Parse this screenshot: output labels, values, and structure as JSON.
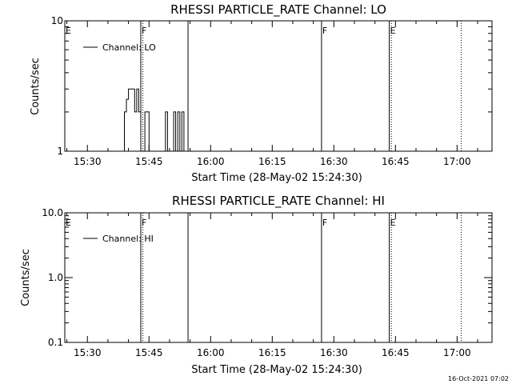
{
  "footer": {
    "timestamp": "16-Oct-2021 07:02"
  },
  "chart_data": [
    {
      "type": "line",
      "title": "RHESSI PARTICLE_RATE Channel: LO",
      "xlabel": "Start Time (28-May-02 15:24:30)",
      "ylabel": "Counts/sec",
      "y_scale": "log",
      "ylim": [
        1,
        10
      ],
      "y_ticks": [
        1,
        10
      ],
      "y_tick_labels": [
        "1",
        "10"
      ],
      "xlim": [
        "15:24:30",
        "17:08:30"
      ],
      "x_ticks": [
        "15:30",
        "15:45",
        "16:00",
        "16:15",
        "16:30",
        "16:45",
        "17:00"
      ],
      "legend": {
        "label": "Channel: LO",
        "placement": "top-left"
      },
      "markers": [
        {
          "time": "15:24:30",
          "label": "E",
          "style": "solid"
        },
        {
          "time": "15:43:00",
          "label": "F",
          "style": "solid"
        },
        {
          "time": "15:43:30",
          "label": "",
          "style": "dotted"
        },
        {
          "time": "15:54:30",
          "label": "",
          "style": "solid"
        },
        {
          "time": "16:27:00",
          "label": "F",
          "style": "solid"
        },
        {
          "time": "16:43:30",
          "label": "E",
          "style": "solid"
        },
        {
          "time": "16:44:00",
          "label": "",
          "style": "dotted"
        },
        {
          "time": "17:01:00",
          "label": "",
          "style": "dotted"
        }
      ],
      "series": [
        {
          "x": [
            "15:39:00",
            "15:39:00",
            "15:39:30",
            "15:39:30",
            "15:40:00",
            "15:40:00",
            "15:40:30",
            "15:40:30",
            "15:41:00",
            "15:41:00",
            "15:41:30",
            "15:41:30",
            "15:42:00",
            "15:42:00",
            "15:42:30",
            "15:42:30",
            "15:43:00",
            "15:43:00",
            "15:43:30",
            "15:43:30",
            "15:44:00",
            "15:44:00",
            "15:44:30",
            "15:44:30",
            "15:45:00",
            "15:45:00",
            "15:45:30",
            "15:45:30",
            "15:46:00",
            "15:46:00",
            "15:46:30",
            "15:46:30",
            "15:47:00",
            "15:47:00",
            "15:47:30",
            "15:47:30",
            "15:49:00",
            "15:49:00",
            "15:49:30",
            "15:49:30",
            "15:51:00",
            "15:51:00",
            "15:51:30",
            "15:51:30",
            "15:52:00",
            "15:52:00",
            "15:52:30",
            "15:52:30",
            "15:53:00",
            "15:53:00",
            "15:53:30",
            "15:53:30"
          ],
          "y": [
            1,
            2,
            2,
            2.5,
            2.5,
            3,
            3,
            3,
            3,
            3,
            3,
            2,
            2,
            3,
            3,
            2,
            2,
            1,
            1,
            1,
            1,
            2,
            2,
            2,
            2,
            1,
            1,
            1,
            1,
            1,
            1,
            1,
            1,
            1,
            1,
            1,
            1,
            2,
            2,
            1,
            1,
            2,
            2,
            1,
            1,
            2,
            2,
            1,
            1,
            2,
            2,
            1
          ]
        }
      ]
    },
    {
      "type": "line",
      "title": "RHESSI PARTICLE_RATE Channel: HI",
      "xlabel": "Start Time (28-May-02 15:24:30)",
      "ylabel": "Counts/sec",
      "y_scale": "log",
      "ylim": [
        0.1,
        10
      ],
      "y_ticks": [
        0.1,
        1,
        10
      ],
      "y_tick_labels": [
        "0.1",
        "1.0",
        "10.0"
      ],
      "xlim": [
        "15:24:30",
        "17:08:30"
      ],
      "x_ticks": [
        "15:30",
        "15:45",
        "16:00",
        "16:15",
        "16:30",
        "16:45",
        "17:00"
      ],
      "legend": {
        "label": "Channel: HI",
        "placement": "top-left"
      },
      "markers": [
        {
          "time": "15:24:30",
          "label": "E",
          "style": "solid"
        },
        {
          "time": "15:43:00",
          "label": "F",
          "style": "solid"
        },
        {
          "time": "15:43:30",
          "label": "",
          "style": "dotted"
        },
        {
          "time": "15:54:30",
          "label": "",
          "style": "solid"
        },
        {
          "time": "16:27:00",
          "label": "F",
          "style": "solid"
        },
        {
          "time": "16:43:30",
          "label": "E",
          "style": "solid"
        },
        {
          "time": "16:44:00",
          "label": "",
          "style": "dotted"
        },
        {
          "time": "17:01:00",
          "label": "",
          "style": "dotted"
        }
      ],
      "series": [
        {
          "x": [],
          "y": []
        }
      ]
    }
  ]
}
